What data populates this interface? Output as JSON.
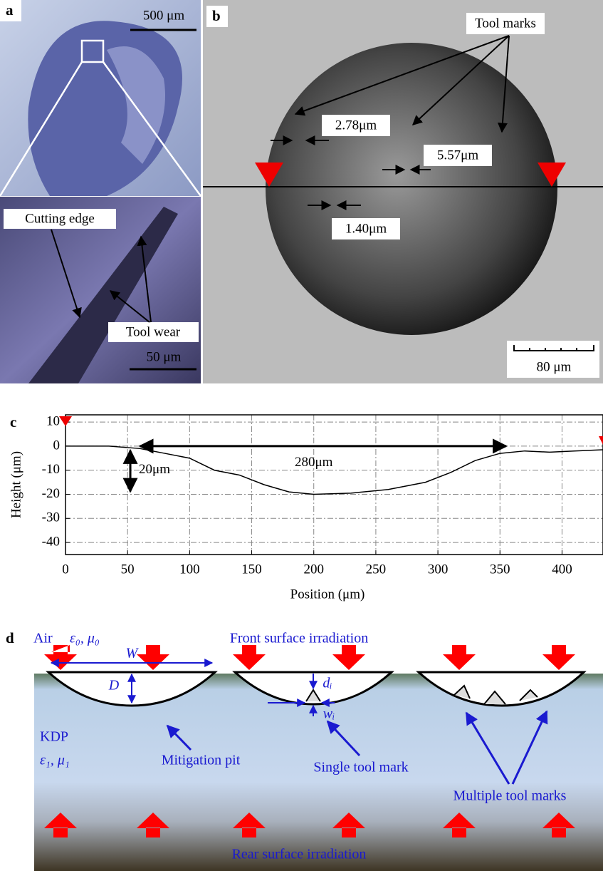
{
  "panel_a": {
    "label": "a",
    "scale_top": "500 μm",
    "cutting_edge": "Cutting edge",
    "tool_wear": "Tool wear",
    "scale_bottom": "50 μm"
  },
  "panel_b": {
    "label": "b",
    "tool_marks": "Tool marks",
    "width_1": "2.78μm",
    "width_2": "5.57μm",
    "width_3": "1.40μm",
    "scale": "80 μm"
  },
  "chart_data": {
    "type": "line",
    "label": "c",
    "xlabel": "Position (μm)",
    "ylabel": "Height (μm)",
    "x": [
      0,
      35,
      60,
      80,
      100,
      120,
      140,
      160,
      180,
      200,
      230,
      260,
      290,
      310,
      330,
      350,
      370,
      390,
      410,
      433
    ],
    "values": [
      0,
      0,
      -1,
      -3,
      -5,
      -10,
      -12,
      -16,
      -19,
      -20,
      -19.5,
      -18,
      -15,
      -11,
      -6,
      -3,
      -2,
      -2.5,
      -2,
      -1.5
    ],
    "color": "#000000",
    "xlim": [
      0,
      433
    ],
    "ylim": [
      -45,
      13
    ],
    "xticks": [
      0,
      50,
      100,
      150,
      200,
      250,
      300,
      350,
      400
    ],
    "yticks": [
      -40,
      -30,
      -20,
      -10,
      0,
      10
    ],
    "grid": true,
    "depth_label": "20μm",
    "width_label": "280μm"
  },
  "panel_d": {
    "label": "d",
    "air": "Air",
    "air_params": "ε₀, μ₀",
    "front": "Front surface irradiation",
    "W": "W",
    "D": "D",
    "d_i": "dᵢ",
    "w_i": "wᵢ",
    "kdp": "KDP",
    "kdp_params": "ε₁, μ₁",
    "mitigation_pit": "Mitigation pit",
    "single_mark": "Single tool mark",
    "multiple_marks": "Multiple tool marks",
    "rear": "Rear surface irradiation"
  }
}
